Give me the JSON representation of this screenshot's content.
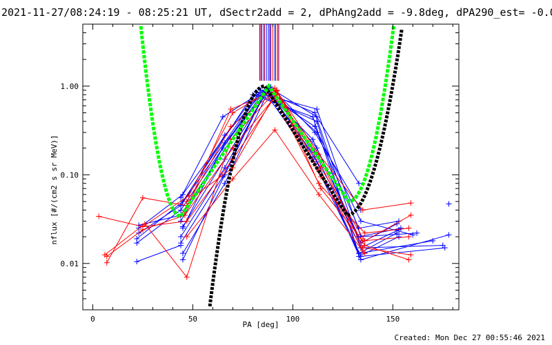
{
  "chart_data": {
    "type": "scatter",
    "title": "2021-11-27/08:24:19 - 08:25:21 UT, dSectr2add = 2, dPhAng2add = -9.8deg, dPA290_est= -0.0deg",
    "xlabel": "PA [deg]",
    "ylabel": "nflux [#/(cm2 s sr MeV)]",
    "xlim": [
      -5,
      183
    ],
    "ylim": [
      0.003,
      5.0
    ],
    "yscale": "log",
    "grid": false,
    "x_ticks": [
      "0",
      "50",
      "100",
      "150"
    ],
    "y_ticks": [
      "0.01",
      "0.10",
      "1.00"
    ],
    "footer": "Created: Mon Dec 27 00:55:46 2021",
    "colors": {
      "blue": "#0000ff",
      "red": "#ff0000",
      "fit_green": "#00ff00",
      "fit_black": "#000000"
    },
    "top_markers": {
      "blue": [
        83.5,
        84.5,
        85.5,
        87,
        88,
        89,
        91,
        92.5
      ],
      "red": [
        84,
        86,
        88.5,
        90,
        91.5,
        93
      ]
    },
    "series": [
      {
        "color": "blue",
        "x": [
          23,
          45,
          82,
          112,
          134,
          162
        ],
        "y": [
          0.025,
          0.06,
          0.85,
          0.55,
          0.02,
          0.022
        ]
      },
      {
        "color": "blue",
        "x": [
          22,
          45,
          80,
          110,
          133,
          170
        ],
        "y": [
          0.019,
          0.05,
          0.8,
          0.45,
          0.013,
          0.018
        ]
      },
      {
        "color": "blue",
        "x": [
          23,
          44,
          84,
          111,
          134,
          175
        ],
        "y": [
          0.022,
          0.045,
          0.9,
          0.5,
          0.015,
          0.016
        ]
      },
      {
        "color": "blue",
        "x": [
          22,
          44,
          83,
          112,
          133,
          153
        ],
        "y": [
          0.017,
          0.04,
          0.8,
          0.4,
          0.012,
          0.02
        ]
      },
      {
        "color": "blue",
        "x": [
          23,
          44,
          85,
          111,
          134,
          160
        ],
        "y": [
          0.027,
          0.035,
          0.85,
          0.35,
          0.03,
          0.021
        ]
      },
      {
        "color": "blue",
        "x": [
          44,
          66,
          87,
          112,
          133,
          153
        ],
        "y": [
          0.045,
          0.28,
          0.95,
          0.3,
          0.025,
          0.03
        ]
      },
      {
        "color": "blue",
        "x": [
          44,
          65,
          86,
          110,
          134,
          152
        ],
        "y": [
          0.03,
          0.2,
          0.9,
          0.25,
          0.017,
          0.028
        ]
      },
      {
        "color": "blue",
        "x": [
          45,
          66,
          88,
          112,
          133,
          154
        ],
        "y": [
          0.026,
          0.15,
          0.92,
          0.2,
          0.02,
          0.025
        ]
      },
      {
        "color": "blue",
        "x": [
          44,
          66,
          87,
          111,
          134,
          153
        ],
        "y": [
          0.02,
          0.12,
          0.88,
          0.18,
          0.015,
          0.024
        ]
      },
      {
        "color": "blue",
        "x": [
          44,
          65,
          86,
          110,
          133,
          152
        ],
        "y": [
          0.017,
          0.095,
          0.85,
          0.15,
          0.013,
          0.022
        ]
      },
      {
        "color": "blue",
        "x": [
          45,
          66,
          88,
          112,
          134,
          176
        ],
        "y": [
          0.013,
          0.08,
          0.9,
          0.14,
          0.012,
          0.015
        ]
      },
      {
        "color": "blue",
        "x": [
          45,
          66,
          87,
          111,
          134,
          178
        ],
        "y": [
          0.011,
          0.1,
          0.93,
          0.16,
          0.011,
          0.021
        ]
      },
      {
        "color": "blue",
        "x": [
          44,
          65,
          88,
          112,
          133
        ],
        "y": [
          0.055,
          0.45,
          0.97,
          0.45,
          0.08
        ]
      },
      {
        "color": "blue",
        "x": [
          45,
          66,
          89,
          111,
          134
        ],
        "y": [
          0.025,
          0.23,
          0.98,
          0.3,
          0.04
        ]
      },
      {
        "color": "blue",
        "x": [
          22,
          44
        ],
        "y": [
          0.0105,
          0.016
        ]
      },
      {
        "color": "blue",
        "x": [
          178
        ],
        "y": [
          0.047
        ]
      },
      {
        "color": "red",
        "x": [
          3,
          25,
          48,
          70,
          91,
          113,
          135,
          159
        ],
        "y": [
          0.034,
          0.026,
          0.058,
          0.5,
          0.95,
          0.17,
          0.04,
          0.048
        ]
      },
      {
        "color": "red",
        "x": [
          7,
          25,
          47,
          69,
          92,
          114,
          136,
          159
        ],
        "y": [
          0.0102,
          0.055,
          0.045,
          0.35,
          0.9,
          0.12,
          0.018,
          0.035
        ]
      },
      {
        "color": "red",
        "x": [
          6,
          26,
          47,
          69,
          91,
          113,
          135,
          159
        ],
        "y": [
          0.0125,
          0.028,
          0.007,
          0.25,
          0.85,
          0.16,
          0.015,
          0.0125
        ]
      },
      {
        "color": "red",
        "x": [
          7,
          25,
          46,
          70,
          92,
          114,
          136,
          158
        ],
        "y": [
          0.012,
          0.024,
          0.035,
          0.2,
          0.8,
          0.095,
          0.016,
          0.011
        ]
      },
      {
        "color": "red",
        "x": [
          25,
          47,
          70,
          91,
          113,
          136,
          158
        ],
        "y": [
          0.026,
          0.03,
          0.15,
          0.75,
          0.08,
          0.022,
          0.025
        ]
      },
      {
        "color": "red",
        "x": [
          47,
          70,
          92,
          114,
          135,
          158
        ],
        "y": [
          0.05,
          0.12,
          0.88,
          0.07,
          0.018,
          0.02
        ]
      },
      {
        "color": "red",
        "x": [
          47,
          70,
          91,
          113,
          136
        ],
        "y": [
          0.02,
          0.09,
          0.32,
          0.06,
          0.013
        ]
      },
      {
        "color": "red",
        "x": [
          46,
          69,
          92,
          113,
          135
        ],
        "y": [
          0.038,
          0.55,
          0.9,
          0.11,
          0.014
        ]
      }
    ],
    "fits": [
      {
        "color": "fit_green",
        "type": "dashed",
        "equation": "y = 0.03395 * exp(((x - 44) / 16.04)^2) model (green)"
      },
      {
        "color": "fit_black",
        "type": "dashed"
      }
    ]
  }
}
